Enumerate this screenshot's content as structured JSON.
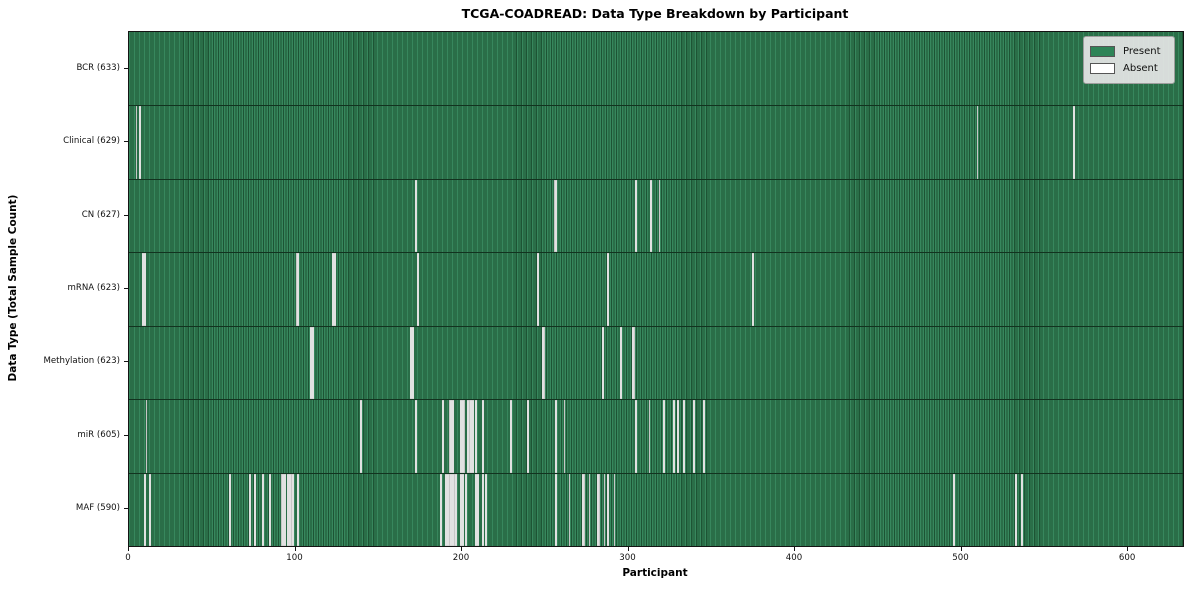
{
  "chart_data": {
    "type": "heatmap",
    "title": "TCGA-COADREAD: Data Type Breakdown by Participant",
    "xlabel": "Participant",
    "ylabel": "Data Type (Total Sample Count)",
    "n_participants": 633,
    "x_ticks": [
      0,
      100,
      200,
      300,
      400,
      500,
      600
    ],
    "legend": [
      {
        "label": "Present",
        "color": "#2e8457"
      },
      {
        "label": "Absent",
        "color": "#ffffff"
      }
    ],
    "colors": {
      "present_light": "#37875d",
      "present_dark": "#1d5434",
      "absent": "#ffffff",
      "axis": "#141414"
    },
    "rows": [
      {
        "key": "bcr",
        "data_type": "BCR",
        "total_samples": 633,
        "label": "BCR (633)",
        "absent_participants": []
      },
      {
        "key": "clinical",
        "data_type": "Clinical",
        "total_samples": 629,
        "label": "Clinical (629)",
        "absent_participants": [
          4,
          6,
          509,
          567
        ]
      },
      {
        "key": "cn",
        "data_type": "CN",
        "total_samples": 627,
        "label": "CN (627)",
        "absent_participants": [
          172,
          255,
          256,
          304,
          313,
          318
        ]
      },
      {
        "key": "mrna",
        "data_type": "mRNA",
        "total_samples": 623,
        "label": "mRNA (623)",
        "absent_participants": [
          8,
          9,
          100,
          101,
          122,
          123,
          173,
          245,
          287,
          374
        ]
      },
      {
        "key": "methylation",
        "data_type": "Methylation",
        "total_samples": 623,
        "label": "Methylation (623)",
        "absent_participants": [
          109,
          110,
          169,
          170,
          248,
          249,
          284,
          295,
          302,
          303
        ]
      },
      {
        "key": "mir",
        "data_type": "miR",
        "total_samples": 605,
        "label": "miR (605)",
        "absent_participants": [
          10,
          139,
          172,
          188,
          192,
          193,
          194,
          199,
          200,
          201,
          203,
          204,
          205,
          206,
          208,
          212,
          229,
          239,
          256,
          261,
          304,
          312,
          321,
          327,
          329,
          333,
          339,
          345
        ]
      },
      {
        "key": "maf",
        "data_type": "MAF",
        "total_samples": 590,
        "label": "MAF (590)",
        "absent_participants": [
          9,
          12,
          60,
          72,
          75,
          80,
          84,
          91,
          92,
          93,
          95,
          96,
          97,
          98,
          101,
          187,
          190,
          191,
          192,
          193,
          194,
          195,
          196,
          199,
          200,
          202,
          208,
          209,
          212,
          214,
          256,
          264,
          272,
          273,
          276,
          281,
          282,
          285,
          287,
          291,
          495,
          532,
          536
        ]
      }
    ]
  }
}
